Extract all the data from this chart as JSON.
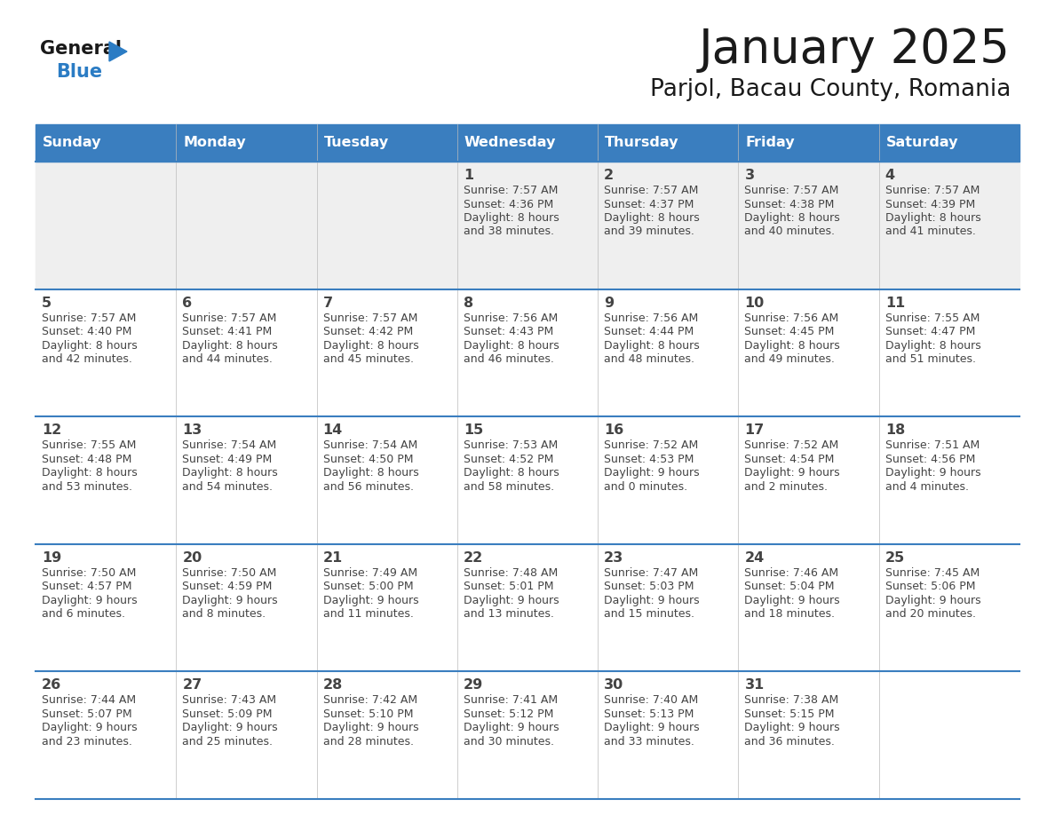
{
  "title": "January 2025",
  "subtitle": "Parjol, Bacau County, Romania",
  "days_of_week": [
    "Sunday",
    "Monday",
    "Tuesday",
    "Wednesday",
    "Thursday",
    "Friday",
    "Saturday"
  ],
  "header_bg": "#3A7EBF",
  "header_text_color": "#FFFFFF",
  "cell_bg_light": "#EFEFEF",
  "cell_bg_white": "#FFFFFF",
  "line_color": "#3A7EBF",
  "text_color": "#444444",
  "title_color": "#1A1A1A",
  "logo_black_color": "#1A1A1A",
  "logo_blue_color": "#2B7CC4",
  "calendar_data": [
    [
      {
        "day": "",
        "sunrise": "",
        "sunset": "",
        "daylight": ""
      },
      {
        "day": "",
        "sunrise": "",
        "sunset": "",
        "daylight": ""
      },
      {
        "day": "",
        "sunrise": "",
        "sunset": "",
        "daylight": ""
      },
      {
        "day": "1",
        "sunrise": "7:57 AM",
        "sunset": "4:36 PM",
        "daylight": "8 hours\nand 38 minutes."
      },
      {
        "day": "2",
        "sunrise": "7:57 AM",
        "sunset": "4:37 PM",
        "daylight": "8 hours\nand 39 minutes."
      },
      {
        "day": "3",
        "sunrise": "7:57 AM",
        "sunset": "4:38 PM",
        "daylight": "8 hours\nand 40 minutes."
      },
      {
        "day": "4",
        "sunrise": "7:57 AM",
        "sunset": "4:39 PM",
        "daylight": "8 hours\nand 41 minutes."
      }
    ],
    [
      {
        "day": "5",
        "sunrise": "7:57 AM",
        "sunset": "4:40 PM",
        "daylight": "8 hours\nand 42 minutes."
      },
      {
        "day": "6",
        "sunrise": "7:57 AM",
        "sunset": "4:41 PM",
        "daylight": "8 hours\nand 44 minutes."
      },
      {
        "day": "7",
        "sunrise": "7:57 AM",
        "sunset": "4:42 PM",
        "daylight": "8 hours\nand 45 minutes."
      },
      {
        "day": "8",
        "sunrise": "7:56 AM",
        "sunset": "4:43 PM",
        "daylight": "8 hours\nand 46 minutes."
      },
      {
        "day": "9",
        "sunrise": "7:56 AM",
        "sunset": "4:44 PM",
        "daylight": "8 hours\nand 48 minutes."
      },
      {
        "day": "10",
        "sunrise": "7:56 AM",
        "sunset": "4:45 PM",
        "daylight": "8 hours\nand 49 minutes."
      },
      {
        "day": "11",
        "sunrise": "7:55 AM",
        "sunset": "4:47 PM",
        "daylight": "8 hours\nand 51 minutes."
      }
    ],
    [
      {
        "day": "12",
        "sunrise": "7:55 AM",
        "sunset": "4:48 PM",
        "daylight": "8 hours\nand 53 minutes."
      },
      {
        "day": "13",
        "sunrise": "7:54 AM",
        "sunset": "4:49 PM",
        "daylight": "8 hours\nand 54 minutes."
      },
      {
        "day": "14",
        "sunrise": "7:54 AM",
        "sunset": "4:50 PM",
        "daylight": "8 hours\nand 56 minutes."
      },
      {
        "day": "15",
        "sunrise": "7:53 AM",
        "sunset": "4:52 PM",
        "daylight": "8 hours\nand 58 minutes."
      },
      {
        "day": "16",
        "sunrise": "7:52 AM",
        "sunset": "4:53 PM",
        "daylight": "9 hours\nand 0 minutes."
      },
      {
        "day": "17",
        "sunrise": "7:52 AM",
        "sunset": "4:54 PM",
        "daylight": "9 hours\nand 2 minutes."
      },
      {
        "day": "18",
        "sunrise": "7:51 AM",
        "sunset": "4:56 PM",
        "daylight": "9 hours\nand 4 minutes."
      }
    ],
    [
      {
        "day": "19",
        "sunrise": "7:50 AM",
        "sunset": "4:57 PM",
        "daylight": "9 hours\nand 6 minutes."
      },
      {
        "day": "20",
        "sunrise": "7:50 AM",
        "sunset": "4:59 PM",
        "daylight": "9 hours\nand 8 minutes."
      },
      {
        "day": "21",
        "sunrise": "7:49 AM",
        "sunset": "5:00 PM",
        "daylight": "9 hours\nand 11 minutes."
      },
      {
        "day": "22",
        "sunrise": "7:48 AM",
        "sunset": "5:01 PM",
        "daylight": "9 hours\nand 13 minutes."
      },
      {
        "day": "23",
        "sunrise": "7:47 AM",
        "sunset": "5:03 PM",
        "daylight": "9 hours\nand 15 minutes."
      },
      {
        "day": "24",
        "sunrise": "7:46 AM",
        "sunset": "5:04 PM",
        "daylight": "9 hours\nand 18 minutes."
      },
      {
        "day": "25",
        "sunrise": "7:45 AM",
        "sunset": "5:06 PM",
        "daylight": "9 hours\nand 20 minutes."
      }
    ],
    [
      {
        "day": "26",
        "sunrise": "7:44 AM",
        "sunset": "5:07 PM",
        "daylight": "9 hours\nand 23 minutes."
      },
      {
        "day": "27",
        "sunrise": "7:43 AM",
        "sunset": "5:09 PM",
        "daylight": "9 hours\nand 25 minutes."
      },
      {
        "day": "28",
        "sunrise": "7:42 AM",
        "sunset": "5:10 PM",
        "daylight": "9 hours\nand 28 minutes."
      },
      {
        "day": "29",
        "sunrise": "7:41 AM",
        "sunset": "5:12 PM",
        "daylight": "9 hours\nand 30 minutes."
      },
      {
        "day": "30",
        "sunrise": "7:40 AM",
        "sunset": "5:13 PM",
        "daylight": "9 hours\nand 33 minutes."
      },
      {
        "day": "31",
        "sunrise": "7:38 AM",
        "sunset": "5:15 PM",
        "daylight": "9 hours\nand 36 minutes."
      },
      {
        "day": "",
        "sunrise": "",
        "sunset": "",
        "daylight": ""
      }
    ]
  ]
}
